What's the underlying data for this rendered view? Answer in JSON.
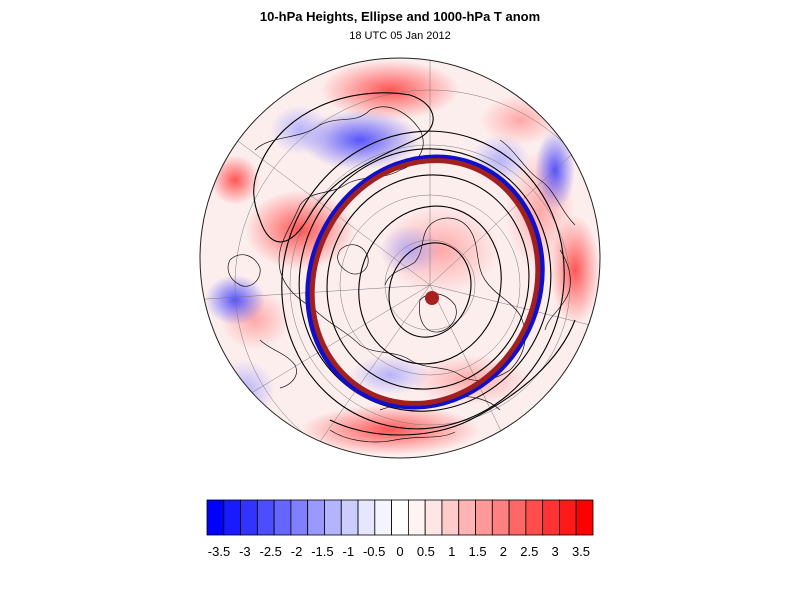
{
  "title": "10-hPa Heights, Ellipse and 1000-hPa T anom",
  "subtitle": "18 UTC 05 Jan 2012",
  "colorbar": {
    "labels": [
      "-3.5",
      "-3",
      "-2.5",
      "-2",
      "-1.5",
      "-1",
      "-0.5",
      "0",
      "0.5",
      "1",
      "1.5",
      "2",
      "2.5",
      "3",
      "3.5"
    ],
    "colors": [
      "#0000ff",
      "#1a1aff",
      "#3333ff",
      "#4d4dff",
      "#6666ff",
      "#8080ff",
      "#9999ff",
      "#b3b3ff",
      "#ccccff",
      "#e6e6ff",
      "#f4f4ff",
      "#ffffff",
      "#fff4f4",
      "#ffe6e6",
      "#ffcccc",
      "#ffb3b3",
      "#ff9999",
      "#ff8080",
      "#ff6666",
      "#ff4d4d",
      "#ff3333",
      "#ff1a1a",
      "#ff0000"
    ]
  },
  "legend_colors": {
    "ellipse_blue": "#1010c8",
    "ellipse_red": "#a02020",
    "center_dot": "#a82020",
    "contour": "#000000"
  }
}
